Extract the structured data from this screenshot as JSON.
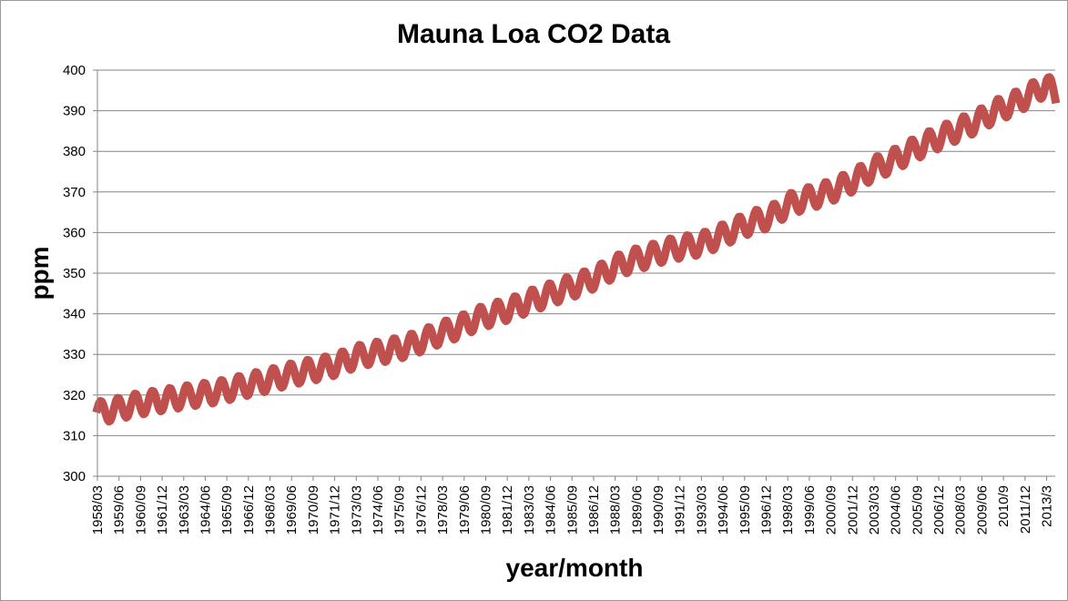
{
  "chart_data": {
    "type": "line",
    "title": "Mauna Loa CO2 Data",
    "xlabel": "year/month",
    "ylabel": "ppm",
    "ylim": [
      300,
      400
    ],
    "y_ticks": [
      300,
      310,
      320,
      330,
      340,
      350,
      360,
      370,
      380,
      390,
      400
    ],
    "x_tick_labels": [
      "1958/03",
      "1959/06",
      "1960/09",
      "1961/12",
      "1963/03",
      "1964/06",
      "1965/09",
      "1966/12",
      "1968/03",
      "1969/06",
      "1970/09",
      "1971/12",
      "1973/03",
      "1974/06",
      "1975/09",
      "1976/12",
      "1978/03",
      "1979/06",
      "1980/09",
      "1981/12",
      "1983/03",
      "1984/06",
      "1985/09",
      "1986/12",
      "1988/03",
      "1989/06",
      "1990/09",
      "1991/12",
      "1993/03",
      "1994/06",
      "1995/09",
      "1996/12",
      "1998/03",
      "1999/06",
      "2000/09",
      "2001/12",
      "2003/03",
      "2004/06",
      "2005/09",
      "2006/12",
      "2008/03",
      "2009/06",
      "2010/9",
      "2011/12",
      "2013/3"
    ],
    "grid": true,
    "legend": "none",
    "series_color": "#c0504d",
    "series": [
      {
        "x": [
          "1958/03",
          "1959/03",
          "1960/03",
          "1961/03",
          "1962/03",
          "1963/03",
          "1964/03",
          "1965/03",
          "1966/03",
          "1967/03",
          "1968/03",
          "1969/03",
          "1970/03",
          "1971/03",
          "1972/03",
          "1973/03",
          "1974/03",
          "1975/03",
          "1976/03",
          "1977/03",
          "1978/03",
          "1979/03",
          "1980/03",
          "1981/03",
          "1982/03",
          "1983/03",
          "1984/03",
          "1985/03",
          "1986/03",
          "1987/03",
          "1988/03",
          "1989/03",
          "1990/03",
          "1991/03",
          "1992/03",
          "1993/03",
          "1994/03",
          "1995/03",
          "1996/03",
          "1997/03",
          "1998/03",
          "1999/03",
          "2000/03",
          "2001/03",
          "2002/03",
          "2003/03",
          "2004/03",
          "2005/03",
          "2006/03",
          "2007/03",
          "2008/03",
          "2009/03",
          "2010/03",
          "2011/03",
          "2012/03",
          "2013/03",
          "2013/09"
        ],
        "values": [
          315.7,
          316.4,
          317.5,
          318.2,
          318.9,
          319.6,
          320.2,
          320.8,
          321.8,
          322.8,
          323.7,
          324.9,
          325.8,
          326.6,
          327.7,
          329.5,
          330.3,
          331.1,
          332.1,
          333.7,
          335.4,
          336.8,
          338.8,
          340.1,
          341.3,
          343.0,
          344.5,
          346.0,
          347.4,
          349.2,
          351.6,
          353.2,
          354.3,
          355.7,
          356.5,
          357.2,
          358.9,
          360.9,
          362.7,
          363.8,
          366.8,
          368.3,
          369.4,
          371.1,
          373.2,
          375.8,
          377.5,
          379.8,
          381.9,
          383.8,
          385.6,
          387.4,
          389.9,
          391.6,
          393.8,
          396.5,
          393.8
        ],
        "seasonal_amplitude": 3.0
      }
    ]
  }
}
